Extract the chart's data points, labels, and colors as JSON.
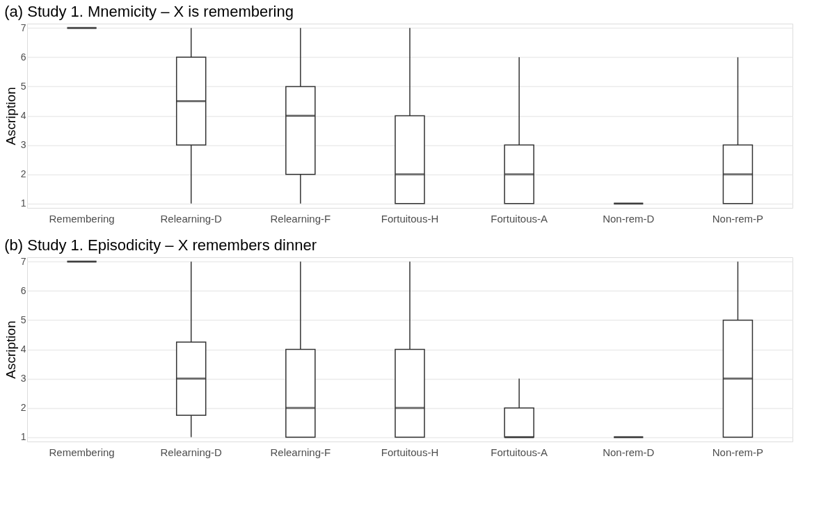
{
  "chart_data": [
    {
      "type": "box",
      "title": "(a) Study 1. Mnemicity – X is remembering",
      "ylabel": "Ascription",
      "categories": [
        "Remembering",
        "Relearning-D",
        "Relearning-F",
        "Fortuitous-H",
        "Fortuitous-A",
        "Non-rem-D",
        "Non-rem-P"
      ],
      "ylim": [
        0.85,
        7.15
      ],
      "yticks": [
        1,
        2,
        3,
        4,
        5,
        6,
        7
      ],
      "grid": "y",
      "color": "#333333",
      "boxes": [
        {
          "low": 7,
          "q1": 7,
          "median": 7,
          "q3": 7,
          "high": 7
        },
        {
          "low": 1,
          "q1": 3,
          "median": 4.5,
          "q3": 6,
          "high": 7
        },
        {
          "low": 1,
          "q1": 2,
          "median": 4,
          "q3": 5,
          "high": 7
        },
        {
          "low": 1,
          "q1": 1,
          "median": 2,
          "q3": 4,
          "high": 7
        },
        {
          "low": 1,
          "q1": 1,
          "median": 2,
          "q3": 3,
          "high": 6
        },
        {
          "low": 1,
          "q1": 1,
          "median": 1,
          "q3": 1,
          "high": 1
        },
        {
          "low": 1,
          "q1": 1,
          "median": 2,
          "q3": 3,
          "high": 6
        }
      ]
    },
    {
      "type": "box",
      "title": "(b) Study 1. Episodicity – X remembers dinner",
      "ylabel": "Ascription",
      "categories": [
        "Remembering",
        "Relearning-D",
        "Relearning-F",
        "Fortuitous-H",
        "Fortuitous-A",
        "Non-rem-D",
        "Non-rem-P"
      ],
      "ylim": [
        0.85,
        7.15
      ],
      "yticks": [
        1,
        2,
        3,
        4,
        5,
        6,
        7
      ],
      "grid": "y",
      "color": "#333333",
      "boxes": [
        {
          "low": 7,
          "q1": 7,
          "median": 7,
          "q3": 7,
          "high": 7
        },
        {
          "low": 1,
          "q1": 1.75,
          "median": 3,
          "q3": 4.25,
          "high": 7
        },
        {
          "low": 1,
          "q1": 1,
          "median": 2,
          "q3": 4,
          "high": 7
        },
        {
          "low": 1,
          "q1": 1,
          "median": 2,
          "q3": 4,
          "high": 7
        },
        {
          "low": 1,
          "q1": 1,
          "median": 1,
          "q3": 2,
          "high": 3
        },
        {
          "low": 1,
          "q1": 1,
          "median": 1,
          "q3": 1,
          "high": 1
        },
        {
          "low": 1,
          "q1": 1,
          "median": 3,
          "q3": 5,
          "high": 7
        }
      ]
    }
  ]
}
